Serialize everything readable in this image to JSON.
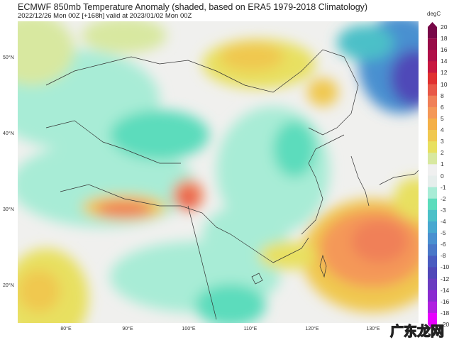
{
  "header": {
    "title": "ECMWF 850mb Temperature Anomaly (shaded, based on ERA5 1979-2018 Climatology)",
    "subtitle": "2022/12/26 Mon 00Z [+168h] valid at 2023/01/02 Mon 00Z"
  },
  "map": {
    "lat_labels": [
      "50°N",
      "40°N",
      "30°N",
      "20°N"
    ],
    "lon_labels": [
      "80°E",
      "90°E",
      "100°E",
      "110°E",
      "120°E",
      "130°E"
    ]
  },
  "colorbar": {
    "unit": "degC",
    "ticks": [
      "20",
      "18",
      "16",
      "14",
      "12",
      "10",
      "8",
      "6",
      "5",
      "4",
      "3",
      "2",
      "1",
      "0",
      "-1",
      "-2",
      "-3",
      "-4",
      "-5",
      "-6",
      "-8",
      "-10",
      "-12",
      "-14",
      "-16",
      "-18",
      "-20"
    ],
    "colors": [
      "#780848",
      "#980c48",
      "#b01048",
      "#c81840",
      "#e03030",
      "#e85848",
      "#f08058",
      "#f49858",
      "#f4b048",
      "#f0c850",
      "#e8e060",
      "#d8e8a0",
      "#f0f0f0",
      "#e6eeec",
      "#a8ecd6",
      "#5cdcbc",
      "#4cc0c8",
      "#48a8d0",
      "#4a90d0",
      "#4a78c8",
      "#4a5cc0",
      "#5048b8",
      "#6a3cc0",
      "#8a2bd0",
      "#b020e0",
      "#e800ff"
    ]
  },
  "watermark": "广东龙网"
}
